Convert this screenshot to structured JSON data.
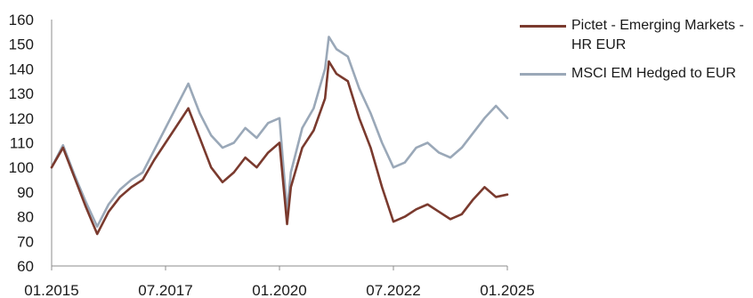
{
  "chart_data": {
    "type": "line",
    "title": "",
    "xlabel": "",
    "ylabel": "",
    "ylim": [
      60,
      160
    ],
    "yticks": [
      60,
      70,
      80,
      90,
      100,
      110,
      120,
      130,
      140,
      150,
      160
    ],
    "xlim": [
      "2015-01",
      "2025-01"
    ],
    "xticks": [
      {
        "date": "2015-01",
        "label": "01.2015"
      },
      {
        "date": "2017-07",
        "label": "07.2017"
      },
      {
        "date": "2020-01",
        "label": "01.2020"
      },
      {
        "date": "2022-07",
        "label": "07.2022"
      },
      {
        "date": "2025-01",
        "label": "01.2025"
      }
    ],
    "grid": false,
    "legend_position": "right",
    "x": [
      "2015-01",
      "2015-04",
      "2015-07",
      "2015-10",
      "2016-01",
      "2016-04",
      "2016-07",
      "2016-10",
      "2017-01",
      "2017-04",
      "2017-07",
      "2017-10",
      "2018-01",
      "2018-04",
      "2018-07",
      "2018-10",
      "2019-01",
      "2019-04",
      "2019-07",
      "2019-10",
      "2020-01",
      "2020-03",
      "2020-04",
      "2020-07",
      "2020-10",
      "2021-01",
      "2021-02",
      "2021-04",
      "2021-07",
      "2021-10",
      "2022-01",
      "2022-04",
      "2022-07",
      "2022-10",
      "2023-01",
      "2023-04",
      "2023-07",
      "2023-10",
      "2024-01",
      "2024-04",
      "2024-07",
      "2024-10",
      "2025-01"
    ],
    "series": [
      {
        "name": "Pictet - Emerging Markets - HR EUR",
        "color": "#7a3a2e",
        "values": [
          100,
          108,
          96,
          84,
          73,
          82,
          88,
          92,
          95,
          103,
          110,
          117,
          124,
          112,
          100,
          94,
          98,
          104,
          100,
          106,
          110,
          77,
          92,
          108,
          115,
          128,
          143,
          138,
          135,
          120,
          108,
          92,
          78,
          80,
          83,
          85,
          82,
          79,
          81,
          87,
          92,
          88,
          89
        ]
      },
      {
        "name": "MSCI EM Hedged to EUR",
        "color": "#9aa8b8",
        "values": [
          100,
          109,
          97,
          86,
          76,
          85,
          91,
          95,
          98,
          107,
          116,
          125,
          134,
          122,
          113,
          108,
          110,
          116,
          112,
          118,
          120,
          82,
          98,
          116,
          124,
          140,
          153,
          148,
          145,
          132,
          122,
          110,
          100,
          102,
          108,
          110,
          106,
          104,
          108,
          114,
          120,
          125,
          120
        ]
      }
    ]
  }
}
